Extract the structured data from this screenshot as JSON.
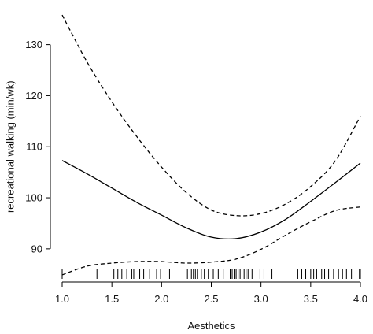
{
  "chart_data": {
    "type": "line",
    "title": "",
    "xlabel": "Aesthetics",
    "ylabel": "recreational walking (min/wk)",
    "xlim": [
      0.97,
      4.07
    ],
    "ylim": [
      83.5,
      137.5
    ],
    "x_ticks": [
      1.0,
      1.5,
      2.0,
      2.5,
      3.0,
      3.5,
      4.0
    ],
    "x_tick_labels": [
      "1.0",
      "1.5",
      "2.0",
      "2.5",
      "3.0",
      "3.5",
      "4.0"
    ],
    "y_ticks": [
      90,
      100,
      110,
      120,
      130
    ],
    "y_tick_labels": [
      "90",
      "100",
      "110",
      "120",
      "130"
    ],
    "grid": false,
    "series": [
      {
        "role": "fit",
        "style": "solid",
        "x": [
          1.0,
          1.25,
          1.5,
          1.75,
          2.0,
          2.25,
          2.5,
          2.75,
          3.0,
          3.25,
          3.5,
          3.75,
          4.0
        ],
        "y": [
          107.3,
          104.7,
          101.9,
          99.1,
          96.6,
          94.1,
          92.3,
          92.0,
          93.3,
          95.8,
          99.3,
          103.0,
          106.8
        ]
      },
      {
        "role": "upper-bound",
        "style": "dashed",
        "x": [
          1.0,
          1.25,
          1.5,
          1.75,
          2.0,
          2.25,
          2.5,
          2.75,
          3.0,
          3.25,
          3.5,
          3.75,
          4.0
        ],
        "y": [
          135.8,
          126.6,
          118.8,
          112.0,
          106.0,
          101.0,
          97.6,
          96.5,
          96.9,
          98.8,
          102.2,
          107.3,
          116.0
        ]
      },
      {
        "role": "lower-bound",
        "style": "dashed",
        "x": [
          1.0,
          1.25,
          1.5,
          1.75,
          2.0,
          2.25,
          2.5,
          2.75,
          3.0,
          3.25,
          3.5,
          3.75,
          4.0
        ],
        "y": [
          84.9,
          86.6,
          87.2,
          87.5,
          87.5,
          87.2,
          87.4,
          88.0,
          89.9,
          92.7,
          95.3,
          97.5,
          98.2
        ]
      }
    ],
    "rug": [
      1.0,
      1.35,
      1.52,
      1.56,
      1.6,
      1.65,
      1.7,
      1.72,
      1.78,
      1.82,
      1.88,
      1.95,
      1.99,
      2.08,
      2.26,
      2.3,
      2.32,
      2.34,
      2.36,
      2.4,
      2.43,
      2.47,
      2.52,
      2.57,
      2.62,
      2.69,
      2.71,
      2.73,
      2.75,
      2.77,
      2.79,
      2.83,
      2.85,
      2.87,
      2.91,
      2.99,
      3.03,
      3.07,
      3.11,
      3.37,
      3.41,
      3.45,
      3.5,
      3.53,
      3.56,
      3.61,
      3.64,
      3.68,
      3.73,
      3.78,
      3.82,
      3.86,
      3.91,
      3.99,
      4.0
    ]
  }
}
